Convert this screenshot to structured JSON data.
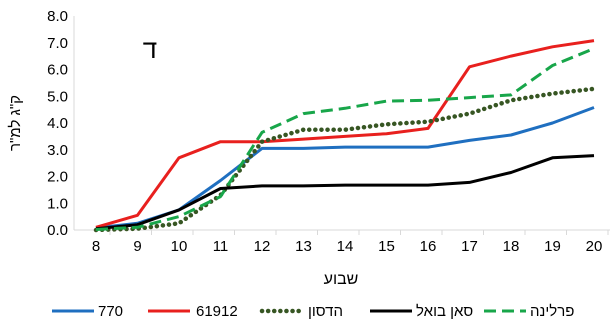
{
  "panel_label": "ד",
  "chart_data": {
    "type": "line",
    "title": "",
    "xlabel": "שבוע",
    "ylabel": "ק\"ג למ\"ר",
    "x": [
      8,
      9,
      10,
      11,
      12,
      13,
      14,
      15,
      16,
      17,
      18,
      19,
      20
    ],
    "xlim": [
      8,
      20
    ],
    "ylim": [
      0,
      8
    ],
    "yticks": [
      "0.0",
      "1.0",
      "2.0",
      "3.0",
      "4.0",
      "5.0",
      "6.0",
      "7.0",
      "8.0"
    ],
    "grid": false,
    "legend_position": "bottom",
    "series": [
      {
        "name": "770",
        "color": "#1f6fc0",
        "style": "solid",
        "values": [
          0.08,
          0.25,
          0.75,
          1.85,
          3.05,
          3.05,
          3.1,
          3.1,
          3.1,
          3.35,
          3.55,
          4.0,
          4.58
        ]
      },
      {
        "name": "61912",
        "color": "#e8201e",
        "style": "solid",
        "values": [
          0.1,
          0.55,
          2.7,
          3.3,
          3.3,
          3.4,
          3.5,
          3.6,
          3.8,
          6.1,
          6.5,
          6.85,
          7.08
        ]
      },
      {
        "name": "הדסון",
        "color": "#375623",
        "style": "dotted",
        "values": [
          0.0,
          0.05,
          0.25,
          1.3,
          3.3,
          3.75,
          3.75,
          3.95,
          4.05,
          4.35,
          4.85,
          5.1,
          5.28
        ]
      },
      {
        "name": "סאן בואל",
        "color": "#000000",
        "style": "solid",
        "values": [
          0.05,
          0.2,
          0.75,
          1.55,
          1.65,
          1.65,
          1.68,
          1.68,
          1.68,
          1.78,
          2.15,
          2.7,
          2.78
        ]
      },
      {
        "name": "פרלינה",
        "color": "#18a64a",
        "style": "dashed",
        "values": [
          0.02,
          0.1,
          0.5,
          1.25,
          3.65,
          4.35,
          4.55,
          4.82,
          4.85,
          4.95,
          5.05,
          6.15,
          6.78
        ]
      }
    ]
  }
}
